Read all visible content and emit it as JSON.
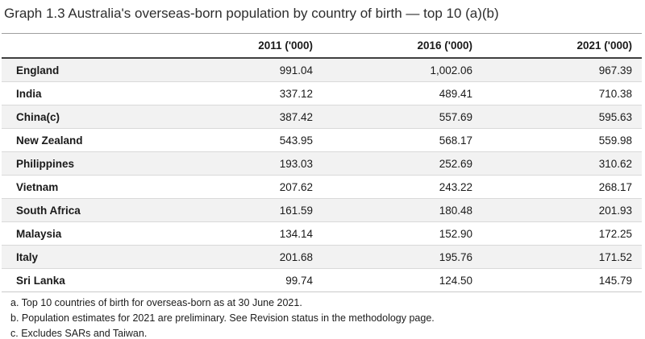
{
  "title": "Graph 1.3 Australia's overseas-born population by country of birth — top 10 (a)(b)",
  "table": {
    "columns": [
      "",
      "2011 ('000)",
      "2016 ('000)",
      "2021 ('000)"
    ],
    "rows": [
      {
        "country": "England",
        "values": [
          "991.04",
          "1,002.06",
          "967.39"
        ]
      },
      {
        "country": "India",
        "values": [
          "337.12",
          "489.41",
          "710.38"
        ]
      },
      {
        "country": "China(c)",
        "values": [
          "387.42",
          "557.69",
          "595.63"
        ]
      },
      {
        "country": "New Zealand",
        "values": [
          "543.95",
          "568.17",
          "559.98"
        ]
      },
      {
        "country": "Philippines",
        "values": [
          "193.03",
          "252.69",
          "310.62"
        ]
      },
      {
        "country": "Vietnam",
        "values": [
          "207.62",
          "243.22",
          "268.17"
        ]
      },
      {
        "country": "South Africa",
        "values": [
          "161.59",
          "180.48",
          "201.93"
        ]
      },
      {
        "country": "Malaysia",
        "values": [
          "134.14",
          "152.90",
          "172.25"
        ]
      },
      {
        "country": "Italy",
        "values": [
          "201.68",
          "195.76",
          "171.52"
        ]
      },
      {
        "country": "Sri Lanka",
        "values": [
          "99.74",
          "124.50",
          "145.79"
        ]
      }
    ]
  },
  "footnotes": [
    "a. Top 10 countries of birth for overseas-born as at 30 June 2021.",
    "b. Population estimates for 2021 are preliminary. See Revision status in the methodology page.",
    "c. Excludes SARs and Taiwan."
  ],
  "colors": {
    "row_stripe": "#f2f2f2",
    "row_divider": "#d9d9d9",
    "header_rule_top": "#9e9e9e",
    "header_rule_bottom": "#3f3f3f",
    "text": "#1a1a1a"
  },
  "chart_data": {
    "type": "table",
    "title": "Graph 1.3 Australia's overseas-born population by country of birth — top 10 (a)(b)",
    "categories": [
      "England",
      "India",
      "China(c)",
      "New Zealand",
      "Philippines",
      "Vietnam",
      "South Africa",
      "Malaysia",
      "Italy",
      "Sri Lanka"
    ],
    "series": [
      {
        "name": "2011 ('000)",
        "values": [
          991.04,
          337.12,
          387.42,
          543.95,
          193.03,
          207.62,
          161.59,
          134.14,
          201.68,
          99.74
        ]
      },
      {
        "name": "2016 ('000)",
        "values": [
          1002.06,
          489.41,
          557.69,
          568.17,
          252.69,
          243.22,
          180.48,
          152.9,
          195.76,
          124.5
        ]
      },
      {
        "name": "2021 ('000)",
        "values": [
          967.39,
          710.38,
          595.63,
          559.98,
          310.62,
          268.17,
          201.93,
          172.25,
          171.52,
          145.79
        ]
      }
    ],
    "footnotes": [
      "a. Top 10 countries of birth for overseas-born as at 30 June 2021.",
      "b. Population estimates for 2021 are preliminary. See Revision status in the methodology page.",
      "c. Excludes SARs and Taiwan."
    ]
  }
}
